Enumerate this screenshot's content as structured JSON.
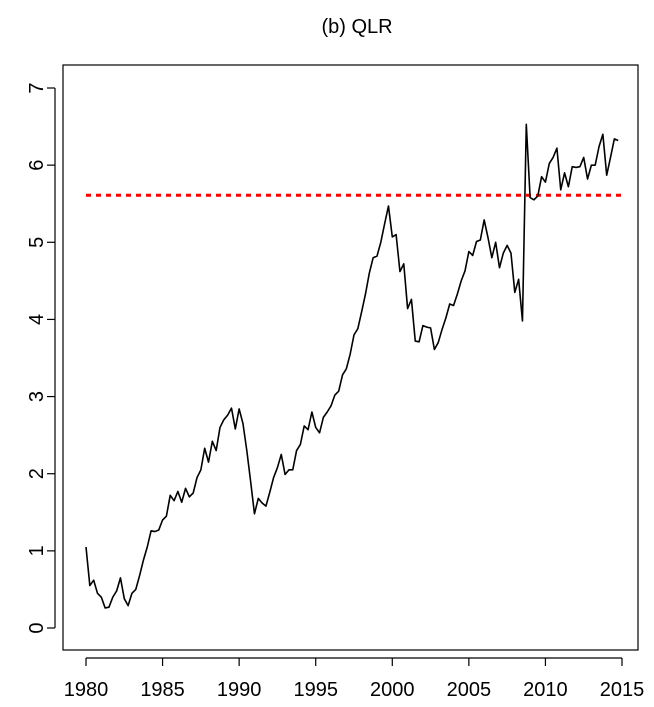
{
  "chart_data": {
    "type": "line",
    "title": "(b) QLR",
    "xlabel": "",
    "ylabel": "",
    "xlim": [
      1980,
      2015
    ],
    "ylim": [
      0,
      7
    ],
    "x_ticks": [
      1980,
      1985,
      1990,
      1995,
      2000,
      2005,
      2010,
      2015
    ],
    "y_ticks": [
      0,
      1,
      2,
      3,
      4,
      5,
      6,
      7
    ],
    "grid": false,
    "colors": {
      "series": "#000000",
      "threshold": "#ff0000"
    },
    "threshold": {
      "y": 5.61,
      "x_from": 1980,
      "x_to": 2015,
      "style": "dotted"
    },
    "series": [
      {
        "x": [
          1980.0,
          1980.25,
          1980.5,
          1980.75,
          1981.0,
          1981.25,
          1981.5,
          1981.75,
          1982.0,
          1982.25,
          1982.5,
          1982.75,
          1983.0,
          1983.25,
          1983.5,
          1983.75,
          1984.0,
          1984.25,
          1984.5,
          1984.75,
          1985.0,
          1985.25,
          1985.5,
          1985.75,
          1986.0,
          1986.25,
          1986.5,
          1986.75,
          1987.0,
          1987.25,
          1987.5,
          1987.75,
          1988.0,
          1988.25,
          1988.5,
          1988.75,
          1989.0,
          1989.25,
          1989.5,
          1989.75,
          1990.0,
          1990.25,
          1990.5,
          1990.75,
          1991.0,
          1991.25,
          1991.5,
          1991.75,
          1992.0,
          1992.25,
          1992.5,
          1992.75,
          1993.0,
          1993.25,
          1993.5,
          1993.75,
          1994.0,
          1994.25,
          1994.5,
          1994.75,
          1995.0,
          1995.25,
          1995.5,
          1995.75,
          1996.0,
          1996.25,
          1996.5,
          1996.75,
          1997.0,
          1997.25,
          1997.5,
          1997.75,
          1998.0,
          1998.25,
          1998.5,
          1998.75,
          1999.0,
          1999.25,
          1999.5,
          1999.75,
          2000.0,
          2000.25,
          2000.5,
          2000.75,
          2001.0,
          2001.25,
          2001.5,
          2001.75,
          2002.0,
          2002.25,
          2002.5,
          2002.75,
          2003.0,
          2003.25,
          2003.5,
          2003.75,
          2004.0,
          2004.25,
          2004.5,
          2004.75,
          2005.0,
          2005.25,
          2005.5,
          2005.75,
          2006.0,
          2006.25,
          2006.5,
          2006.75,
          2007.0,
          2007.25,
          2007.5,
          2007.75,
          2008.0,
          2008.25,
          2008.5,
          2008.75,
          2009.0,
          2009.25,
          2009.5,
          2009.75,
          2010.0,
          2010.25,
          2010.5,
          2010.75,
          2011.0,
          2011.25,
          2011.5,
          2011.75,
          2012.0,
          2012.25,
          2012.5,
          2012.75,
          2013.0,
          2013.25,
          2013.5,
          2013.75,
          2014.0,
          2014.25,
          2014.5,
          2014.75
        ],
        "values": [
          1.05,
          0.55,
          0.62,
          0.45,
          0.4,
          0.26,
          0.27,
          0.4,
          0.48,
          0.65,
          0.38,
          0.29,
          0.45,
          0.5,
          0.68,
          0.88,
          1.05,
          1.26,
          1.25,
          1.27,
          1.4,
          1.45,
          1.72,
          1.65,
          1.77,
          1.63,
          1.81,
          1.7,
          1.75,
          1.95,
          2.05,
          2.33,
          2.15,
          2.42,
          2.3,
          2.6,
          2.7,
          2.76,
          2.85,
          2.58,
          2.84,
          2.65,
          2.3,
          1.9,
          1.48,
          1.68,
          1.62,
          1.58,
          1.76,
          1.95,
          2.08,
          2.25,
          1.99,
          2.05,
          2.05,
          2.3,
          2.38,
          2.62,
          2.57,
          2.8,
          2.6,
          2.53,
          2.73,
          2.8,
          2.88,
          3.02,
          3.07,
          3.28,
          3.36,
          3.55,
          3.8,
          3.88,
          4.1,
          4.33,
          4.6,
          4.8,
          4.82,
          5.0,
          5.24,
          5.47,
          5.07,
          5.1,
          4.62,
          4.72,
          4.14,
          4.26,
          3.72,
          3.71,
          3.92,
          3.9,
          3.89,
          3.61,
          3.7,
          3.87,
          4.02,
          4.2,
          4.18,
          4.33,
          4.5,
          4.63,
          4.88,
          4.83,
          5.01,
          5.03,
          5.29,
          5.06,
          4.8,
          5.0,
          4.67,
          4.86,
          4.96,
          4.86,
          4.35,
          4.52,
          3.98,
          6.53,
          5.58,
          5.55,
          5.6,
          5.85,
          5.78,
          6.02,
          6.1,
          6.22,
          5.68,
          5.9,
          5.72,
          5.98,
          5.97,
          5.98,
          6.1,
          5.82,
          6.0,
          6.0,
          6.24,
          6.4,
          5.87,
          6.1,
          6.34,
          6.32
        ]
      }
    ]
  }
}
